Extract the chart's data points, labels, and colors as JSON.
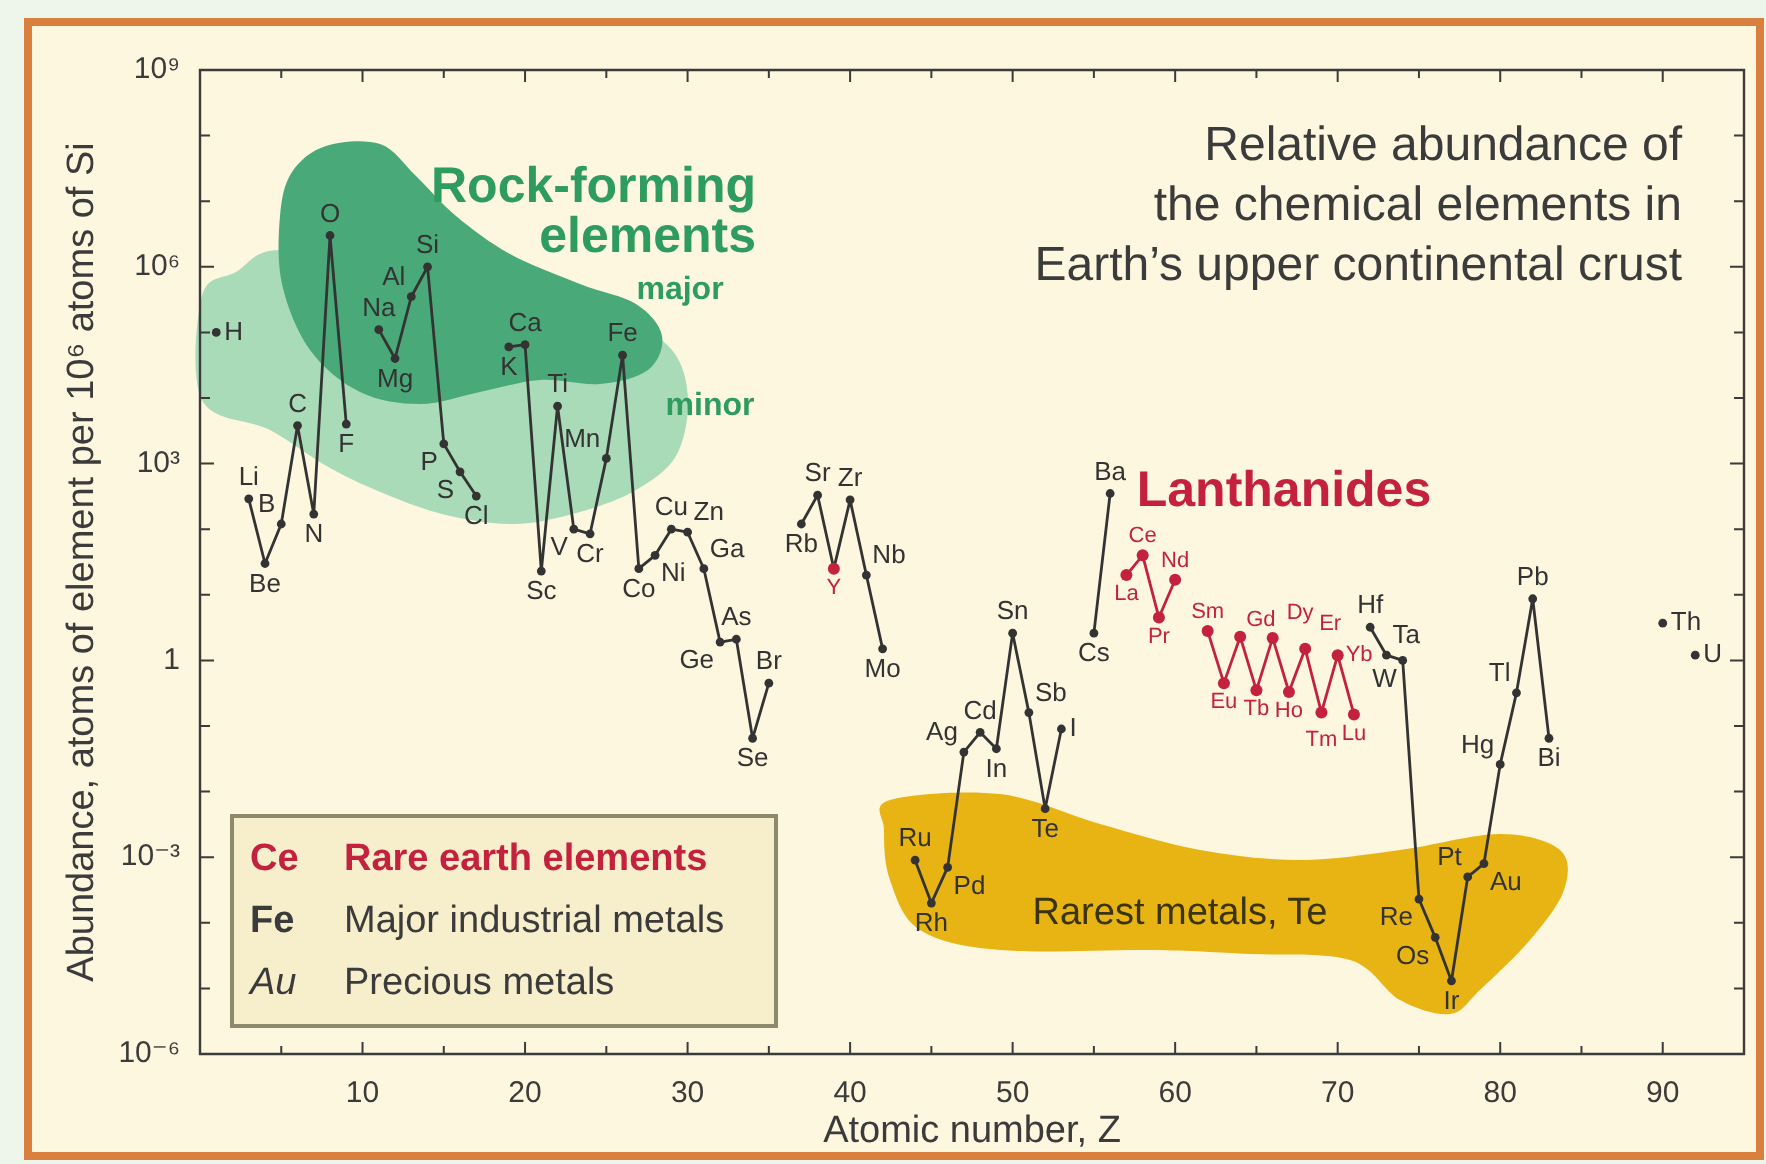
{
  "chart_data": {
    "type": "line",
    "title": "Relative abundance of\nthe chemical elements in\nEarth’s upper continental crust",
    "xlabel": "Atomic number, Z",
    "ylabel": "Abundance, atoms of element per 10⁶ atoms of Si",
    "x": [
      1,
      2,
      3,
      4,
      5,
      6,
      7,
      8,
      9,
      10,
      11,
      12,
      13,
      14,
      15,
      16,
      17,
      18,
      19,
      20,
      21,
      22,
      23,
      24,
      25,
      26,
      27,
      28,
      29,
      30,
      31,
      32,
      33,
      34,
      35,
      36,
      37,
      38,
      39,
      40,
      41,
      42,
      43,
      44,
      45,
      46,
      47,
      48,
      49,
      50,
      51,
      52,
      53,
      54,
      55,
      56,
      57,
      58,
      59,
      60,
      61,
      62,
      63,
      64,
      65,
      66,
      67,
      68,
      69,
      70,
      71,
      72,
      73,
      74,
      75,
      76,
      77,
      78,
      79,
      80,
      81,
      82,
      83,
      84,
      85,
      86,
      87,
      88,
      89,
      90,
      91,
      92
    ],
    "series": [
      {
        "color": "#333333",
        "colors": [
          "#333333",
          "#333333",
          "#333333",
          "#333333",
          "#333333",
          "#333333",
          "#333333",
          "#333333",
          "#333333",
          "#333333",
          "#333333",
          "#333333",
          "#333333",
          "#333333",
          "#333333",
          "#333333",
          "#333333",
          "#333333",
          "#333333",
          "#333333",
          "#333333",
          "#333333",
          "#333333",
          "#333333",
          "#333333",
          "#333333",
          "#333333",
          "#333333",
          "#333333",
          "#333333",
          "#333333",
          "#333333",
          "#333333",
          "#333333",
          "#333333",
          "#333333",
          "#333333",
          "#333333",
          "#c4213f",
          "#333333",
          "#333333",
          "#333333",
          "#333333",
          "#333333",
          "#333333",
          "#333333",
          "#333333",
          "#333333",
          "#333333",
          "#333333",
          "#333333",
          "#333333",
          "#333333",
          "#333333",
          "#333333",
          "#333333",
          "#333333",
          "#333333",
          "#333333",
          "#333333",
          "#333333",
          "#333333",
          "#333333",
          "#333333",
          "#333333",
          "#333333",
          "#333333",
          "#333333",
          "#333333",
          "#333333",
          "#333333",
          "#333333",
          "#333333",
          "#333333",
          "#333333",
          "#333333",
          "#333333",
          "#333333",
          "#333333",
          "#333333",
          "#333333",
          "#333333",
          "#333333",
          "#333333",
          "#333333",
          "#333333",
          "#333333",
          "#333333",
          "#333333",
          "#333333",
          "#333333",
          "#333333"
        ],
        "values": [
          100000,
          null,
          290,
          30,
          120,
          3800,
          170,
          3000000,
          4000,
          null,
          110000,
          40000,
          350000,
          1000000,
          2000,
          750,
          320,
          null,
          60000,
          65000,
          23,
          7500,
          100,
          85,
          1200,
          45000,
          25,
          40,
          100,
          90,
          25,
          1.9,
          2.1,
          0.065,
          0.45,
          null,
          120,
          330,
          25,
          280,
          20,
          1.5,
          null,
          0.0009,
          0.0002,
          0.0007,
          0.04,
          0.08,
          0.045,
          2.6,
          0.16,
          0.0055,
          0.09,
          null,
          2.6,
          350,
          null,
          null,
          null,
          null,
          null,
          null,
          null,
          null,
          null,
          null,
          null,
          null,
          null,
          null,
          null,
          3.2,
          1.2,
          1,
          0.00023,
          6e-05,
          1.3e-05,
          0.0005,
          0.0008,
          0.026,
          0.32,
          8.7,
          0.065,
          null,
          null,
          null,
          null,
          null,
          null,
          3.7,
          null,
          1.2
        ]
      },
      {
        "color": "#c4213f",
        "x": [
          57,
          58,
          59,
          60,
          61,
          62,
          63,
          64,
          65,
          66,
          67,
          68,
          69,
          70,
          71
        ],
        "values": [
          20,
          40,
          4.5,
          17,
          null,
          2.8,
          0.45,
          2.3,
          0.35,
          2.2,
          0.33,
          1.5,
          0.16,
          1.2,
          0.15
        ]
      }
    ],
    "xlim": [
      0,
      95
    ],
    "xticks": [
      {
        "value": 5,
        "label": null
      },
      10,
      {
        "value": 15,
        "label": null
      },
      20,
      {
        "value": 25,
        "label": null
      },
      30,
      {
        "value": 35,
        "label": null
      },
      40,
      {
        "value": 45,
        "label": null
      },
      50,
      {
        "value": 55,
        "label": null
      },
      60,
      {
        "value": 65,
        "label": null
      },
      70,
      {
        "value": 75,
        "label": null
      },
      80,
      {
        "value": 85,
        "label": null
      },
      90
    ],
    "ylim": [
      1e-06,
      1000000000
    ],
    "yticks": [
      {
        "value": 1e-06,
        "label": "10⁻⁶"
      },
      {
        "value": 1e-05,
        "label": null
      },
      {
        "value": 0.0001,
        "label": null
      },
      {
        "value": 0.001,
        "label": "10⁻³"
      },
      {
        "value": 0.01,
        "label": null
      },
      {
        "value": 0.1,
        "label": null
      },
      1,
      {
        "value": 10,
        "label": null
      },
      {
        "value": 100,
        "label": null
      },
      {
        "value": 1000,
        "label": "10³"
      },
      {
        "value": 10000,
        "label": null
      },
      {
        "value": 100000,
        "label": null
      },
      {
        "value": 1000000,
        "label": "10⁶"
      },
      {
        "value": 10000000,
        "label": null
      },
      {
        "value": 100000000,
        "label": null
      },
      {
        "value": 1000000000,
        "label": "10⁹"
      }
    ],
    "log": "y",
    "marker": "circle",
    "line_style": "solid",
    "annotations": [
      "Rock-forming elements",
      "major",
      "minor",
      "Lanthanides",
      "Rarest metals, Te",
      "Ce",
      "Rare earth elements",
      "Fe",
      "Major industrial metals",
      "Au",
      "Precious metals",
      {
        "text": "H",
        "x": 1,
        "y": 100000
      },
      {
        "text": "Li",
        "x": 3,
        "y": 290
      },
      {
        "text": "Be",
        "x": 4,
        "y": 30
      },
      {
        "text": "B",
        "x": 5,
        "y": 120
      },
      {
        "text": "C",
        "x": 6,
        "y": 3800
      },
      {
        "text": "N",
        "x": 7,
        "y": 170
      },
      {
        "text": "O",
        "x": 8,
        "y": 3000000
      },
      {
        "text": "F",
        "x": 9,
        "y": 4000
      },
      {
        "text": "Na",
        "x": 11,
        "y": 110000
      },
      {
        "text": "Mg",
        "x": 12,
        "y": 40000
      },
      {
        "text": "Al",
        "x": 13,
        "y": 350000
      },
      {
        "text": "Si",
        "x": 14,
        "y": 1000000
      },
      {
        "text": "P",
        "x": 15,
        "y": 2000
      },
      {
        "text": "S",
        "x": 16,
        "y": 750
      },
      {
        "text": "Cl",
        "x": 17,
        "y": 320
      },
      {
        "text": "K",
        "x": 19,
        "y": 60000
      },
      {
        "text": "Ca",
        "x": 20,
        "y": 65000
      },
      {
        "text": "Sc",
        "x": 21,
        "y": 23
      },
      {
        "text": "Ti",
        "x": 22,
        "y": 7500
      },
      {
        "text": "V",
        "x": 23,
        "y": 100
      },
      {
        "text": "Cr",
        "x": 24,
        "y": 85
      },
      {
        "text": "Mn",
        "x": 25,
        "y": 1200
      },
      {
        "text": "Fe",
        "x": 26,
        "y": 45000
      },
      {
        "text": "Co",
        "x": 27,
        "y": 25
      },
      {
        "text": "Ni",
        "x": 28,
        "y": 40
      },
      {
        "text": "Cu",
        "x": 29,
        "y": 100
      },
      {
        "text": "Zn",
        "x": 30,
        "y": 90
      },
      {
        "text": "Ga",
        "x": 31,
        "y": 25
      },
      {
        "text": "Ge",
        "x": 32,
        "y": 1.9
      },
      {
        "text": "As",
        "x": 33,
        "y": 2.1
      },
      {
        "text": "Se",
        "x": 34,
        "y": 0.065
      },
      {
        "text": "Br",
        "x": 35,
        "y": 0.45
      },
      {
        "text": "Rb",
        "x": 37,
        "y": 120
      },
      {
        "text": "Sr",
        "x": 38,
        "y": 330
      },
      {
        "text": "Y",
        "x": 39,
        "y": 25
      },
      {
        "text": "Zr",
        "x": 40,
        "y": 280
      },
      {
        "text": "Nb",
        "x": 41,
        "y": 20
      },
      {
        "text": "Mo",
        "x": 42,
        "y": 1.5
      },
      {
        "text": "Ru",
        "x": 44,
        "y": 0.0009
      },
      {
        "text": "Rh",
        "x": 45,
        "y": 0.0002
      },
      {
        "text": "Pd",
        "x": 46,
        "y": 0.0007
      },
      {
        "text": "Ag",
        "x": 47,
        "y": 0.04
      },
      {
        "text": "Cd",
        "x": 48,
        "y": 0.08
      },
      {
        "text": "In",
        "x": 49,
        "y": 0.045
      },
      {
        "text": "Sn",
        "x": 50,
        "y": 2.6
      },
      {
        "text": "Sb",
        "x": 51,
        "y": 0.16
      },
      {
        "text": "Te",
        "x": 52,
        "y": 0.0055
      },
      {
        "text": "I",
        "x": 53,
        "y": 0.09
      },
      {
        "text": "Cs",
        "x": 55,
        "y": 2.6
      },
      {
        "text": "Ba",
        "x": 56,
        "y": 350
      },
      {
        "text": "La",
        "x": 57,
        "y": 20
      },
      {
        "text": "Ce",
        "x": 58,
        "y": 40
      },
      {
        "text": "Pr",
        "x": 59,
        "y": 4.5
      },
      {
        "text": "Nd",
        "x": 60,
        "y": 17
      },
      {
        "text": "Sm",
        "x": 62,
        "y": 2.8
      },
      {
        "text": "Eu",
        "x": 63,
        "y": 0.45
      },
      {
        "text": "Gd",
        "x": 64,
        "y": 2.3
      },
      {
        "text": "Tb",
        "x": 65,
        "y": 0.35
      },
      {
        "text": "Dy",
        "x": 66,
        "y": 2.2
      },
      {
        "text": "Ho",
        "x": 67,
        "y": 0.33
      },
      {
        "text": "Er",
        "x": 68,
        "y": 1.5
      },
      {
        "text": "Tm",
        "x": 69,
        "y": 0.16
      },
      {
        "text": "Yb",
        "x": 70,
        "y": 1.2
      },
      {
        "text": "Lu",
        "x": 71,
        "y": 0.15
      },
      {
        "text": "Hf",
        "x": 72,
        "y": 3.2
      },
      {
        "text": "Ta",
        "x": 73,
        "y": 1.2
      },
      {
        "text": "W",
        "x": 74,
        "y": 1
      },
      {
        "text": "Re",
        "x": 75,
        "y": 0.00023
      },
      {
        "text": "Os",
        "x": 76,
        "y": 6e-05
      },
      {
        "text": "Ir",
        "x": 77,
        "y": 1.3e-05
      },
      {
        "text": "Pt",
        "x": 78,
        "y": 0.0005
      },
      {
        "text": "Au",
        "x": 79,
        "y": 0.0008
      },
      {
        "text": "Hg",
        "x": 80,
        "y": 0.026
      },
      {
        "text": "Tl",
        "x": 81,
        "y": 0.32
      },
      {
        "text": "Pb",
        "x": 82,
        "y": 8.7
      },
      {
        "text": "Bi",
        "x": 83,
        "y": 0.065
      },
      {
        "text": "Th",
        "x": 90,
        "y": 3.7
      },
      {
        "text": "U",
        "x": 92,
        "y": 1.2
      }
    ]
  }
}
